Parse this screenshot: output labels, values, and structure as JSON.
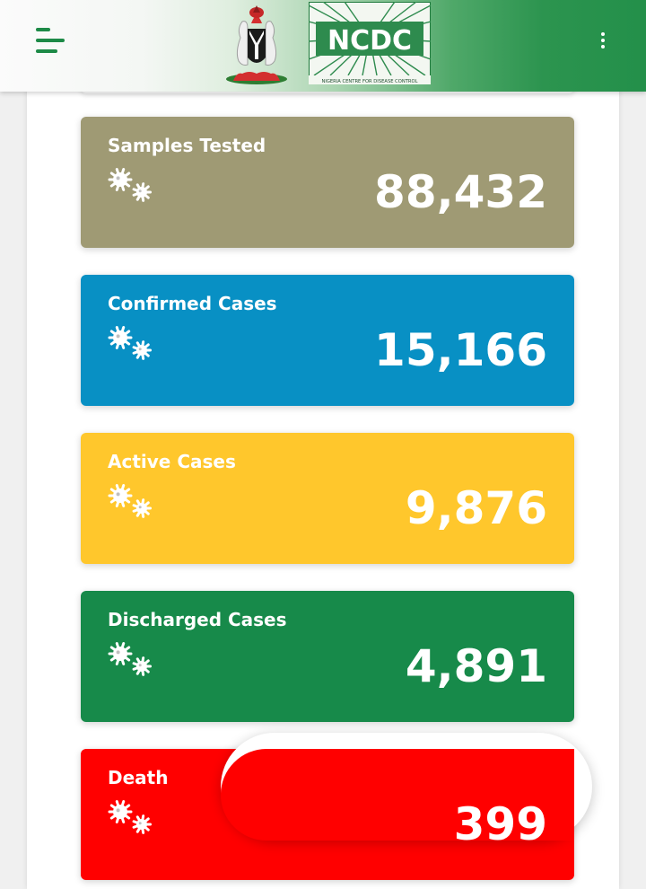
{
  "header": {
    "logo_text": "NCDC",
    "logo_subtitle": "NIGERIA CENTRE FOR DISEASE CONTROL",
    "menu_icon": "hamburger-menu-icon",
    "more_icon": "more-vertical-icon",
    "gradient_start": "#fbfbfb",
    "gradient_end": "#23904a"
  },
  "stats": [
    {
      "label": "Samples Tested",
      "value": "88,432",
      "color": "#9f9a74",
      "icon": "virus-icon"
    },
    {
      "label": "Confirmed Cases",
      "value": "15,166",
      "color": "#0890c4",
      "icon": "virus-icon"
    },
    {
      "label": "Active Cases",
      "value": "9,876",
      "color": "#ffc72c",
      "icon": "virus-icon"
    },
    {
      "label": "Discharged Cases",
      "value": "4,891",
      "color": "#178a4a",
      "icon": "virus-icon"
    },
    {
      "label": "Death",
      "value": "399",
      "color": "#ff0000",
      "icon": "virus-icon"
    }
  ]
}
